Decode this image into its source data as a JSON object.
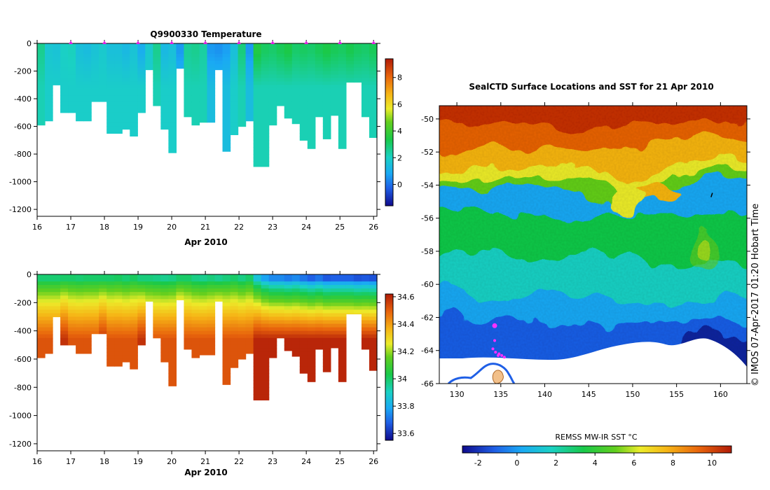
{
  "chart_data": [
    {
      "type": "heatmap",
      "title": "Q9900330  Temperature",
      "xlabel": "Apr 2010",
      "ylabel": "",
      "xlim": [
        16,
        26.1
      ],
      "ylim": [
        -1250,
        0
      ],
      "x_ticks": [
        "16",
        "17",
        "18",
        "19",
        "20",
        "21",
        "22",
        "23",
        "24",
        "25",
        "26"
      ],
      "y_ticks": [
        "0",
        "-200",
        "-400",
        "-600",
        "-800",
        "-1000",
        "-1200"
      ],
      "colorbar": {
        "min": -1.6,
        "max": 9.4,
        "ticks": [
          "0",
          "2",
          "4",
          "6",
          "8"
        ]
      },
      "profile_markers": [
        17,
        18,
        19,
        20,
        21,
        22,
        23,
        24,
        25,
        26
      ]
    },
    {
      "type": "heatmap",
      "title": "",
      "xlabel": "Apr 2010",
      "ylabel": "",
      "xlim": [
        16,
        26.1
      ],
      "ylim": [
        -1250,
        0
      ],
      "x_ticks": [
        "16",
        "17",
        "18",
        "19",
        "20",
        "21",
        "22",
        "23",
        "24",
        "25",
        "26"
      ],
      "y_ticks": [
        "0",
        "-200",
        "-400",
        "-600",
        "-800",
        "-1000",
        "-1200"
      ],
      "colorbar": {
        "min": 33.55,
        "max": 34.62,
        "ticks": [
          "33.6",
          "33.8",
          "34",
          "34.2",
          "34.4",
          "34.6"
        ]
      }
    },
    {
      "type": "heatmap",
      "title": "SealCTD Surface Locations and SST for 21 Apr 2010",
      "xlabel": "",
      "ylabel": "",
      "xlim": [
        128,
        163
      ],
      "ylim": [
        -66,
        -49.2
      ],
      "x_ticks": [
        "130",
        "135",
        "140",
        "145",
        "150",
        "155",
        "160"
      ],
      "y_ticks": [
        "-50",
        "-52",
        "-54",
        "-56",
        "-58",
        "-60",
        "-62",
        "-64",
        "-66"
      ],
      "colorbar": {
        "label": "REMSS MW-IR SST °C",
        "min": -2.8,
        "max": 11,
        "ticks": [
          "-2",
          "0",
          "2",
          "4",
          "6",
          "8",
          "10"
        ]
      }
    }
  ],
  "profiles": {
    "max_depth": [
      -590,
      -560,
      -300,
      -500,
      -500,
      -560,
      -560,
      -420,
      -420,
      -650,
      -650,
      -620,
      -670,
      -500,
      -190,
      -450,
      -620,
      -790,
      -180,
      -530,
      -590,
      -570,
      -570,
      -190,
      -780,
      -660,
      -600,
      -560,
      -890,
      -890,
      -590,
      -450,
      -540,
      -580,
      -700,
      -760,
      -530,
      -690,
      -520,
      -760,
      -280,
      -280,
      -530,
      -680
    ],
    "surface_temp": [
      2.6,
      1.7,
      1.6,
      2.0,
      2.1,
      1.5,
      1.4,
      1.6,
      1.8,
      1.5,
      1.5,
      1.3,
      1.6,
      1.0,
      1.8,
      2.6,
      1.3,
      1.5,
      0.6,
      2.5,
      2.6,
      2.4,
      0.6,
      0.5,
      0.7,
      1.5,
      2.8,
      0.6,
      3.5,
      3.1,
      3.0,
      3.2,
      3.4,
      3.0,
      3.1,
      3.0,
      3.2,
      3.4,
      3.2,
      3.1,
      3.3,
      3.1,
      3.0,
      3.2
    ],
    "surface_salinity": [
      33.99,
      33.99,
      33.99,
      34.0,
      34.0,
      33.99,
      34.0,
      34.0,
      34.0,
      34.0,
      34.01,
      33.99,
      34.01,
      33.98,
      33.98,
      33.97,
      33.96,
      33.97,
      34.0,
      34.0,
      33.97,
      33.96,
      33.98,
      33.96,
      33.98,
      34.0,
      33.97,
      34.0,
      33.86,
      33.78,
      33.74,
      33.74,
      33.72,
      33.74,
      33.71,
      33.68,
      33.71,
      33.67,
      33.68,
      33.68,
      33.68,
      33.66,
      33.67,
      33.66
    ]
  },
  "map": {
    "track": [
      [
        134.3,
        -62.5
      ],
      [
        134.3,
        -63.4
      ],
      [
        134.1,
        -63.9
      ],
      [
        134.4,
        -64.1
      ],
      [
        134.8,
        -64.2
      ],
      [
        134.7,
        -64.3
      ],
      [
        135.1,
        -64.3
      ],
      [
        135.4,
        -64.4
      ]
    ],
    "stray_mark": [
      159.0,
      -54.6
    ]
  },
  "watermark": "© IMOS 07-Apr-2017 01:20 Hobart Time"
}
